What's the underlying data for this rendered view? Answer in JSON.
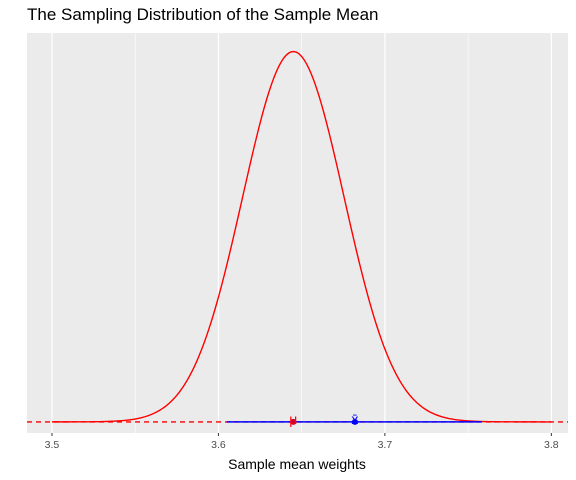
{
  "chart_data": {
    "type": "line",
    "title": "The Sampling Distribution of the Sample Mean",
    "xlabel": "Sample mean weights",
    "ylabel": "",
    "xlim": [
      3.485,
      3.81
    ],
    "ylim": [
      -0.03,
      1.05
    ],
    "x_ticks": [
      3.5,
      3.6,
      3.7,
      3.8
    ],
    "x_tick_labels": [
      "3.5",
      "3.6",
      "3.7",
      "3.8"
    ],
    "x_minor_ticks": [
      3.55,
      3.65,
      3.75
    ],
    "grid": true,
    "legend": "none",
    "series": [
      {
        "kind": "density-curve",
        "color": "#ff0000",
        "mean": 3.645,
        "sd": 0.0305,
        "x_range": [
          3.5,
          3.8
        ],
        "peak": 1.0
      }
    ],
    "reference_line": {
      "y": 0,
      "color": "#ff0000",
      "style": "dashed"
    },
    "interval": {
      "from": 3.605,
      "to": 3.758,
      "y": 0,
      "color": "#0000ff"
    },
    "points": [
      {
        "label": "μ",
        "x": 3.645,
        "y": 0,
        "color": "#cc0033"
      },
      {
        "label": "x̄",
        "x": 3.682,
        "y": 0,
        "color": "#0000ff"
      }
    ],
    "annotations": [
      {
        "text": "μ",
        "x": 3.645,
        "color": "#ff0000"
      },
      {
        "text": "x̄",
        "x": 3.682,
        "color": "#0000ff"
      }
    ],
    "colors": {
      "panel_background": "#ebebeb",
      "grid": "#ffffff",
      "curve": "#ff0000"
    }
  }
}
